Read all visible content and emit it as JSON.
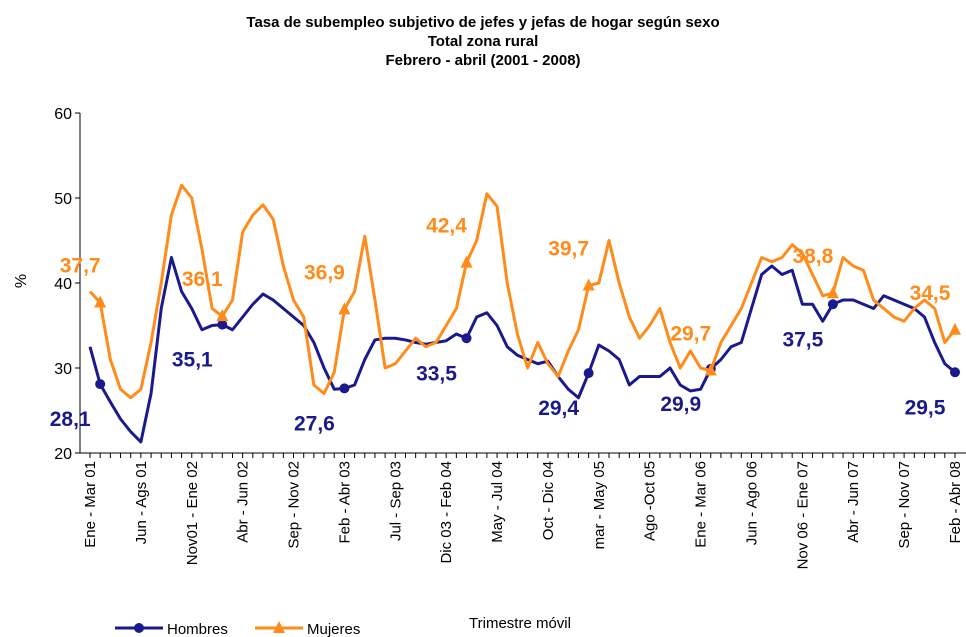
{
  "chart_data": {
    "type": "line",
    "title": [
      "Tasa de subempleo subjetivo de jefes y jefas de hogar según sexo",
      "Total zona rural",
      "Febrero - abril (2001 - 2008)"
    ],
    "y_label": "%",
    "x_label": "Trimestre móvil",
    "categories": [
      "Ene - Mar 01",
      null,
      null,
      null,
      null,
      "Jun - Ags 01",
      null,
      null,
      null,
      null,
      "Nov01 - Ene 02",
      null,
      null,
      null,
      null,
      "Abr - Jun 02",
      null,
      null,
      null,
      null,
      "Sep - Nov 02",
      null,
      null,
      null,
      null,
      "Feb - Abr 03",
      null,
      null,
      null,
      null,
      "Jul - Sep 03",
      null,
      null,
      null,
      null,
      "Dic 03 - Feb 04",
      null,
      null,
      null,
      null,
      "May - Jul 04",
      null,
      null,
      null,
      null,
      "Oct - Dic 04",
      null,
      null,
      null,
      null,
      "mar - May 05",
      null,
      null,
      null,
      null,
      "Ago -Oct 05",
      null,
      null,
      null,
      null,
      "Ene - Mar 06",
      null,
      null,
      null,
      null,
      "Jun - Ago 06",
      null,
      null,
      null,
      null,
      "Nov 06 - Ene 07",
      null,
      null,
      null,
      null,
      "Abr - Jun 07",
      null,
      null,
      null,
      null,
      "Sep - Nov 07",
      null,
      null,
      null,
      null,
      "Feb - Abr 08"
    ],
    "series": [
      {
        "name": "Hombres",
        "color": "#1a1a8c",
        "marker": "circle",
        "values": [
          32.5,
          28.1,
          26,
          24,
          22.5,
          21.3,
          27,
          37,
          43,
          39,
          37,
          34.5,
          35,
          35.1,
          34.5,
          36,
          37.5,
          38.7,
          38,
          37,
          36,
          35,
          33,
          30,
          27.5,
          27.6,
          28,
          31,
          33.3,
          33.5,
          33.5,
          33.3,
          33,
          32.8,
          33,
          33.2,
          34,
          33.5,
          36,
          36.5,
          35,
          32.5,
          31.5,
          31,
          30.5,
          30.8,
          29,
          27.5,
          26.5,
          29.4,
          32.7,
          32,
          31,
          28,
          29,
          29,
          29,
          30,
          28,
          27.3,
          27.5,
          29.9,
          31,
          32.5,
          33,
          37,
          41,
          42,
          41,
          41.5,
          37.5,
          37.5,
          35.5,
          37.5,
          38,
          38,
          37.5,
          37,
          38.5,
          38,
          37.5,
          37,
          36,
          33,
          30.5,
          29.5
        ],
        "value_labels": [
          null,
          "28,1",
          null,
          null,
          null,
          null,
          null,
          null,
          null,
          null,
          null,
          null,
          null,
          "35,1",
          null,
          null,
          null,
          null,
          null,
          null,
          null,
          null,
          null,
          null,
          null,
          "27,6",
          null,
          null,
          null,
          null,
          null,
          null,
          null,
          null,
          null,
          null,
          null,
          "33,5",
          null,
          null,
          null,
          null,
          null,
          null,
          null,
          null,
          null,
          null,
          null,
          "29,4",
          null,
          null,
          null,
          null,
          null,
          null,
          null,
          null,
          null,
          null,
          null,
          "29,9",
          null,
          null,
          null,
          null,
          null,
          null,
          null,
          null,
          null,
          null,
          null,
          "37,5",
          null,
          null,
          null,
          null,
          null,
          null,
          null,
          null,
          null,
          null,
          null,
          "29,5"
        ]
      },
      {
        "name": "Mujeres",
        "color": "#ff8c1a",
        "marker": "triangle",
        "values": [
          39,
          37.7,
          31,
          27.5,
          26.5,
          27.5,
          33,
          40,
          48,
          51.5,
          50,
          44,
          37,
          36.1,
          38,
          46,
          48,
          49.2,
          47.5,
          42,
          38,
          36,
          28,
          27,
          29.5,
          36.9,
          39,
          45.5,
          38,
          30,
          30.5,
          32,
          33.5,
          32.5,
          33,
          35,
          37,
          42.4,
          45,
          50.5,
          49,
          40,
          34,
          30,
          33,
          30.5,
          29,
          32,
          34.5,
          39.7,
          40,
          45,
          40,
          36,
          33.5,
          35,
          37,
          33,
          30,
          32,
          30,
          29.7,
          33,
          35,
          37,
          40,
          43,
          42.5,
          43,
          44.5,
          43.5,
          41,
          38.5,
          38.8,
          43,
          42,
          41.5,
          38,
          37,
          36,
          35.5,
          37,
          38,
          37,
          33,
          34.5
        ],
        "value_labels": [
          null,
          "37,7",
          null,
          null,
          null,
          null,
          null,
          null,
          null,
          null,
          null,
          null,
          null,
          "36,1",
          null,
          null,
          null,
          null,
          null,
          null,
          null,
          null,
          null,
          null,
          null,
          "36,9",
          null,
          null,
          null,
          null,
          null,
          null,
          null,
          null,
          null,
          null,
          null,
          "42,4",
          null,
          null,
          null,
          null,
          null,
          null,
          null,
          null,
          null,
          null,
          null,
          "39,7",
          null,
          null,
          null,
          null,
          null,
          null,
          null,
          null,
          null,
          null,
          null,
          "29,7",
          null,
          null,
          null,
          null,
          null,
          null,
          null,
          null,
          null,
          null,
          null,
          "38,8",
          null,
          null,
          null,
          null,
          null,
          null,
          null,
          null,
          null,
          null,
          null,
          "34,5"
        ]
      }
    ],
    "ylim": [
      20,
      60
    ],
    "yticks": [
      20,
      30,
      40,
      50,
      60
    ],
    "grid": false,
    "legend": "bottom-left"
  }
}
